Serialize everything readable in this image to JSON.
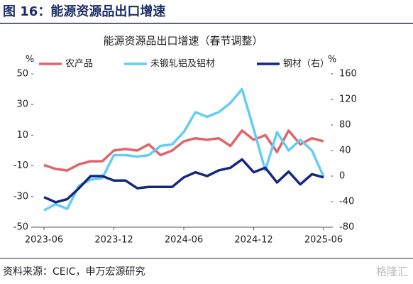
{
  "header": {
    "title": "图 16：能源资源品出口增速"
  },
  "chart_data": {
    "type": "line",
    "title": "能源资源品出口增速（春节调整）",
    "y_label": "%",
    "y2_label": "%",
    "categories": [
      "2023-06",
      null,
      null,
      null,
      null,
      null,
      "2023-12",
      null,
      null,
      null,
      null,
      null,
      "2024-06",
      null,
      null,
      null,
      null,
      null,
      "2024-12",
      null,
      null,
      null,
      null,
      null,
      "2025-06"
    ],
    "ylim": [
      -50,
      50
    ],
    "yticks": [
      -50,
      -30,
      -10,
      10,
      30,
      50
    ],
    "y2lim": [
      -80,
      160
    ],
    "y2ticks": [
      -80,
      -40,
      0,
      40,
      80,
      120,
      160
    ],
    "series": [
      {
        "name": "农产品",
        "color": "#e06469",
        "values": [
          -9.5,
          -12,
          -13,
          -9,
          -7,
          -7,
          0,
          1,
          0,
          4,
          -3,
          0,
          6,
          8,
          7,
          8,
          3,
          13,
          7,
          10,
          -1,
          13,
          4,
          8,
          6
        ]
      },
      {
        "name": "未锻轧铝及铝材",
        "color": "#63cdf3",
        "values": [
          -39,
          -35,
          -38,
          -23,
          -19,
          -18,
          -3,
          -3,
          -4,
          -3,
          3,
          4,
          12,
          25,
          22,
          25,
          31,
          40,
          14,
          -13,
          12,
          0,
          7,
          0,
          -17
        ]
      },
      {
        "name": "钢材（右）",
        "color": "#14287f",
        "axis": "y2",
        "values": [
          -33,
          -41,
          -36,
          -19,
          0,
          0,
          -7,
          -7,
          -19,
          -17,
          -17,
          -17,
          -2,
          6,
          0,
          9,
          13,
          26,
          6,
          13,
          -10,
          7,
          -13,
          3,
          -2
        ]
      }
    ]
  },
  "footer": {
    "source": "资料来源：CEIC，申万宏源研究",
    "watermark": "格隆汇"
  }
}
